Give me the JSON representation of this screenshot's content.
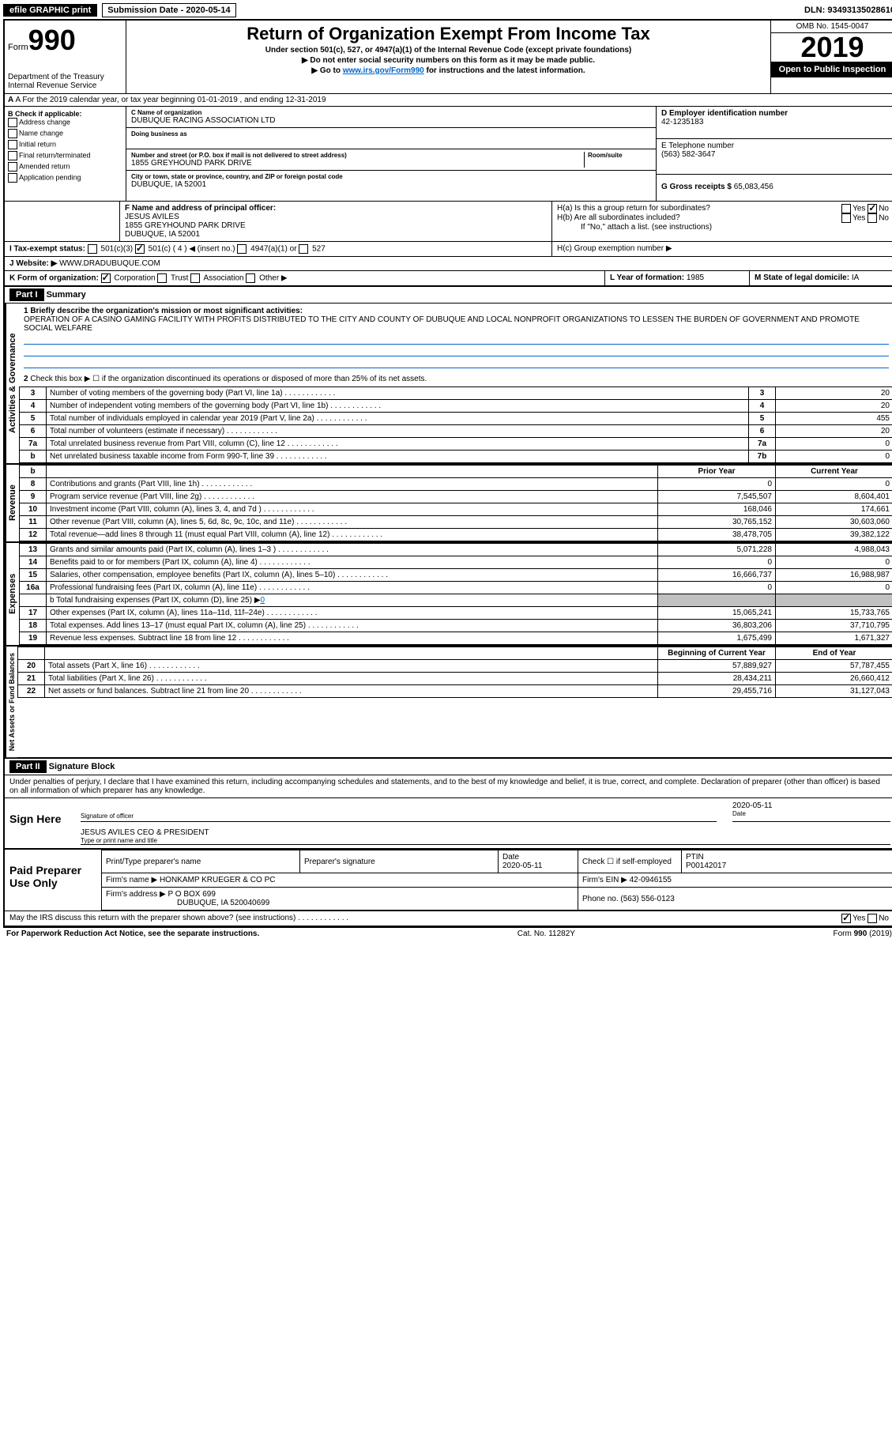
{
  "top_bar": {
    "efile": "efile GRAPHIC print",
    "sub_date_label": "Submission Date - 2020-05-14",
    "dln": "DLN: 93493135028610"
  },
  "header": {
    "form_word": "Form",
    "form_num": "990",
    "dept": "Department of the Treasury",
    "irs": "Internal Revenue Service",
    "title": "Return of Organization Exempt From Income Tax",
    "sub1": "Under section 501(c), 527, or 4947(a)(1) of the Internal Revenue Code (except private foundations)",
    "sub2": "▶ Do not enter social security numbers on this form as it may be made public.",
    "sub3_pre": "▶ Go to ",
    "sub3_link": "www.irs.gov/Form990",
    "sub3_post": " for instructions and the latest information.",
    "omb": "OMB No. 1545-0047",
    "year": "2019",
    "open": "Open to Public Inspection"
  },
  "section_a": "A For the 2019 calendar year, or tax year beginning 01-01-2019    , and ending 12-31-2019",
  "block_b": {
    "title": "B Check if applicable:",
    "opts": [
      "Address change",
      "Name change",
      "Initial return",
      "Final return/terminated",
      "Amended return",
      "Application pending"
    ]
  },
  "block_c": {
    "label": "C Name of organization",
    "name": "DUBUQUE RACING ASSOCIATION LTD",
    "dba_label": "Doing business as",
    "addr_label": "Number and street (or P.O. box if mail is not delivered to street address)",
    "room_label": "Room/suite",
    "addr": "1855 GREYHOUND PARK DRIVE",
    "city_label": "City or town, state or province, country, and ZIP or foreign postal code",
    "city": "DUBUQUE, IA  52001"
  },
  "block_d": {
    "label": "D Employer identification number",
    "val": "42-1235183"
  },
  "block_e": {
    "label": "E Telephone number",
    "val": "(563) 582-3647"
  },
  "block_g": {
    "label": "G Gross receipts $",
    "val": "65,083,456"
  },
  "block_f": {
    "label": "F  Name and address of principal officer:",
    "name": "JESUS AVILES",
    "addr": "1855 GREYHOUND PARK DRIVE",
    "city": "DUBUQUE, IA  52001"
  },
  "block_h": {
    "a": "H(a)  Is this a group return for subordinates?",
    "b": "H(b)  Are all subordinates included?",
    "b_note": "If \"No,\" attach a list. (see instructions)",
    "c": "H(c)  Group exemption number ▶"
  },
  "yes": "Yes",
  "no": "No",
  "block_i": {
    "label": "I   Tax-exempt status:",
    "c3": "501(c)(3)",
    "c": "501(c) ( 4 ) ◀ (insert no.)",
    "a1": "4947(a)(1) or",
    "s527": "527"
  },
  "block_j": {
    "label": "J   Website: ▶",
    "val": "WWW.DRADUBUQUE.COM"
  },
  "block_k": {
    "label": "K Form of organization:",
    "corp": "Corporation",
    "trust": "Trust",
    "assoc": "Association",
    "other": "Other ▶"
  },
  "block_l": {
    "label": "L Year of formation:",
    "val": "1985"
  },
  "block_m": {
    "label": "M State of legal domicile:",
    "val": "IA"
  },
  "part1": {
    "header": "Part I",
    "title": "Summary"
  },
  "summary": {
    "q1_label": "1  Briefly describe the organization's mission or most significant activities:",
    "q1_text": "OPERATION OF A CASINO GAMING FACILITY WITH PROFITS DISTRIBUTED TO THE CITY AND COUNTY OF DUBUQUE AND LOCAL NONPROFIT ORGANIZATIONS TO LESSEN THE BURDEN OF GOVERNMENT AND PROMOTE SOCIAL WELFARE",
    "q2": "Check this box ▶ ☐ if the organization discontinued its operations or disposed of more than 25% of its net assets.",
    "rows_top": [
      {
        "n": "3",
        "text": "Number of voting members of the governing body (Part VI, line 1a)",
        "line": "3",
        "val": "20"
      },
      {
        "n": "4",
        "text": "Number of independent voting members of the governing body (Part VI, line 1b)",
        "line": "4",
        "val": "20"
      },
      {
        "n": "5",
        "text": "Total number of individuals employed in calendar year 2019 (Part V, line 2a)",
        "line": "5",
        "val": "455"
      },
      {
        "n": "6",
        "text": "Total number of volunteers (estimate if necessary)",
        "line": "6",
        "val": "20"
      },
      {
        "n": "7a",
        "text": "Total unrelated business revenue from Part VIII, column (C), line 12",
        "line": "7a",
        "val": "0"
      },
      {
        "n": "b",
        "text": "Net unrelated business taxable income from Form 990-T, line 39",
        "line": "7b",
        "val": "0"
      }
    ],
    "col_prior": "Prior Year",
    "col_current": "Current Year",
    "revenue": [
      {
        "n": "8",
        "text": "Contributions and grants (Part VIII, line 1h)",
        "prior": "0",
        "curr": "0"
      },
      {
        "n": "9",
        "text": "Program service revenue (Part VIII, line 2g)",
        "prior": "7,545,507",
        "curr": "8,604,401"
      },
      {
        "n": "10",
        "text": "Investment income (Part VIII, column (A), lines 3, 4, and 7d )",
        "prior": "168,046",
        "curr": "174,661"
      },
      {
        "n": "11",
        "text": "Other revenue (Part VIII, column (A), lines 5, 6d, 8c, 9c, 10c, and 11e)",
        "prior": "30,765,152",
        "curr": "30,603,060"
      },
      {
        "n": "12",
        "text": "Total revenue—add lines 8 through 11 (must equal Part VIII, column (A), line 12)",
        "prior": "38,478,705",
        "curr": "39,382,122"
      }
    ],
    "expenses": [
      {
        "n": "13",
        "text": "Grants and similar amounts paid (Part IX, column (A), lines 1–3 )",
        "prior": "5,071,228",
        "curr": "4,988,043"
      },
      {
        "n": "14",
        "text": "Benefits paid to or for members (Part IX, column (A), line 4)",
        "prior": "0",
        "curr": "0"
      },
      {
        "n": "15",
        "text": "Salaries, other compensation, employee benefits (Part IX, column (A), lines 5–10)",
        "prior": "16,666,737",
        "curr": "16,988,987"
      },
      {
        "n": "16a",
        "text": "Professional fundraising fees (Part IX, column (A), line 11e)",
        "prior": "0",
        "curr": "0"
      }
    ],
    "line_b": "b  Total fundraising expenses (Part IX, column (D), line 25) ▶",
    "line_b_val": "0",
    "expenses2": [
      {
        "n": "17",
        "text": "Other expenses (Part IX, column (A), lines 11a–11d, 11f–24e)",
        "prior": "15,065,241",
        "curr": "15,733,765"
      },
      {
        "n": "18",
        "text": "Total expenses. Add lines 13–17 (must equal Part IX, column (A), line 25)",
        "prior": "36,803,206",
        "curr": "37,710,795"
      },
      {
        "n": "19",
        "text": "Revenue less expenses. Subtract line 18 from line 12",
        "prior": "1,675,499",
        "curr": "1,671,327"
      }
    ],
    "col_begin": "Beginning of Current Year",
    "col_end": "End of Year",
    "net": [
      {
        "n": "20",
        "text": "Total assets (Part X, line 16)",
        "prior": "57,889,927",
        "curr": "57,787,455"
      },
      {
        "n": "21",
        "text": "Total liabilities (Part X, line 26)",
        "prior": "28,434,211",
        "curr": "26,660,412"
      },
      {
        "n": "22",
        "text": "Net assets or fund balances. Subtract line 21 from line 20",
        "prior": "29,455,716",
        "curr": "31,127,043"
      }
    ],
    "vert_activities": "Activities & Governance",
    "vert_revenue": "Revenue",
    "vert_expenses": "Expenses",
    "vert_net": "Net Assets or Fund Balances"
  },
  "part2": {
    "header": "Part II",
    "title": "Signature Block"
  },
  "sig": {
    "declaration": "Under penalties of perjury, I declare that I have examined this return, including accompanying schedules and statements, and to the best of my knowledge and belief, it is true, correct, and complete. Declaration of preparer (other than officer) is based on all information of which preparer has any knowledge.",
    "sign_here": "Sign Here",
    "sig_officer": "Signature of officer",
    "date": "2020-05-11",
    "date_label": "Date",
    "name_title": "JESUS AVILES  CEO & PRESIDENT",
    "name_title_label": "Type or print name and title"
  },
  "preparer": {
    "label": "Paid Preparer Use Only",
    "print_name": "Print/Type preparer's name",
    "prep_sig": "Preparer's signature",
    "date_label": "Date",
    "date": "2020-05-11",
    "check_label": "Check ☐ if self-employed",
    "ptin_label": "PTIN",
    "ptin": "P00142017",
    "firm_name_label": "Firm's name    ▶",
    "firm_name": "HONKAMP KRUEGER & CO PC",
    "firm_ein_label": "Firm's EIN ▶",
    "firm_ein": "42-0946155",
    "firm_addr_label": "Firm's address ▶",
    "firm_addr1": "P O BOX 699",
    "firm_addr2": "DUBUQUE, IA  520040699",
    "phone_label": "Phone no.",
    "phone": "(563) 556-0123"
  },
  "discuss": "May the IRS discuss this return with the preparer shown above? (see instructions)",
  "footer": {
    "left": "For Paperwork Reduction Act Notice, see the separate instructions.",
    "mid": "Cat. No. 11282Y",
    "right": "Form 990 (2019)"
  }
}
